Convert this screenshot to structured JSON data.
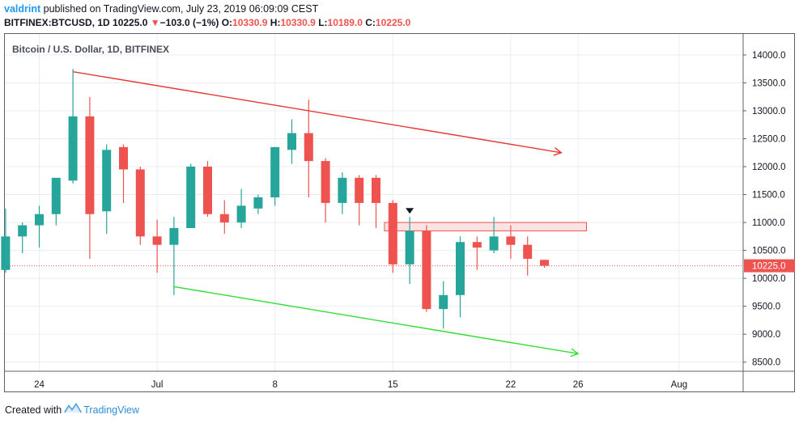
{
  "header": {
    "author": "valdrint",
    "published_text": " published on TradingView.com, July 23, 2019 06:09:09 CEST",
    "symbol": "BITFINEX:BTCUSD, 1D",
    "last": "10225.0",
    "change_arrow": "▼",
    "change": "−103.0 (−1%)",
    "o_label": "O:",
    "o": "10330.9",
    "h_label": "H:",
    "h": "10330.9",
    "l_label": "L:",
    "l": "10189.0",
    "c_label": "C:",
    "c": "10225.0"
  },
  "chart_title": "Bitcoin / U.S. Dollar, 1D, BITFINEX",
  "footer": {
    "created_with": "Created with",
    "brand": "TradingView"
  },
  "colors": {
    "up": "#26a69a",
    "down": "#ef5350",
    "grid": "#e9edf2",
    "resistance_line": "#e53935",
    "support_line": "#33dd33",
    "zone_fill": "#fbe3e3",
    "zone_stroke": "#ef5350",
    "price_line": "#ef5350"
  },
  "chart_data": {
    "type": "candlestick",
    "title": "Bitcoin / U.S. Dollar, 1D, BITFINEX",
    "ylim": [
      8300,
      14300
    ],
    "y_ticks": [
      14000,
      13500,
      13000,
      12500,
      12000,
      11500,
      11000,
      10500,
      10000,
      9500,
      9000,
      8500
    ],
    "x_ticks": [
      "24",
      "Jul",
      "8",
      "15",
      "22",
      "26",
      "Aug"
    ],
    "x_tick_days": [
      0,
      7,
      14,
      21,
      28,
      32,
      38
    ],
    "last_price": 10225.0,
    "candles": [
      {
        "day": -2,
        "o": 10150,
        "h": 11250,
        "l": 10100,
        "c": 10750
      },
      {
        "day": -1,
        "o": 10750,
        "h": 11000,
        "l": 10450,
        "c": 10950
      },
      {
        "day": 0,
        "o": 10950,
        "h": 11300,
        "l": 10550,
        "c": 11150
      },
      {
        "day": 1,
        "o": 11150,
        "h": 11800,
        "l": 10950,
        "c": 11800
      },
      {
        "day": 2,
        "o": 11750,
        "h": 13750,
        "l": 11700,
        "c": 12900
      },
      {
        "day": 3,
        "o": 12900,
        "h": 13250,
        "l": 10350,
        "c": 11150
      },
      {
        "day": 4,
        "o": 11200,
        "h": 12400,
        "l": 10800,
        "c": 12300
      },
      {
        "day": 5,
        "o": 12350,
        "h": 12400,
        "l": 11350,
        "c": 11950
      },
      {
        "day": 6,
        "o": 11950,
        "h": 12000,
        "l": 10600,
        "c": 10750
      },
      {
        "day": 7,
        "o": 10750,
        "h": 11050,
        "l": 10100,
        "c": 10600
      },
      {
        "day": 8,
        "o": 10600,
        "h": 11100,
        "l": 9700,
        "c": 10900
      },
      {
        "day": 9,
        "o": 10900,
        "h": 12050,
        "l": 10900,
        "c": 12000
      },
      {
        "day": 10,
        "o": 12000,
        "h": 12100,
        "l": 11100,
        "c": 11150
      },
      {
        "day": 11,
        "o": 11150,
        "h": 11400,
        "l": 10800,
        "c": 11000
      },
      {
        "day": 12,
        "o": 11000,
        "h": 11600,
        "l": 10900,
        "c": 11300
      },
      {
        "day": 13,
        "o": 11250,
        "h": 11500,
        "l": 11150,
        "c": 11450
      },
      {
        "day": 14,
        "o": 11450,
        "h": 12350,
        "l": 11300,
        "c": 12350
      },
      {
        "day": 15,
        "o": 12300,
        "h": 12850,
        "l": 12050,
        "c": 12600
      },
      {
        "day": 16,
        "o": 12600,
        "h": 13200,
        "l": 11450,
        "c": 12100
      },
      {
        "day": 17,
        "o": 12100,
        "h": 12150,
        "l": 11000,
        "c": 11350
      },
      {
        "day": 18,
        "o": 11350,
        "h": 11900,
        "l": 11150,
        "c": 11800
      },
      {
        "day": 19,
        "o": 11800,
        "h": 11850,
        "l": 10950,
        "c": 11350
      },
      {
        "day": 20,
        "o": 11800,
        "h": 11850,
        "l": 10900,
        "c": 11350
      },
      {
        "day": 21,
        "o": 11350,
        "h": 11400,
        "l": 10100,
        "c": 10250
      },
      {
        "day": 22,
        "o": 10250,
        "h": 11100,
        "l": 9900,
        "c": 10850
      },
      {
        "day": 23,
        "o": 10850,
        "h": 10950,
        "l": 9400,
        "c": 9450
      },
      {
        "day": 24,
        "o": 9450,
        "h": 9950,
        "l": 9100,
        "c": 9700
      },
      {
        "day": 25,
        "o": 9700,
        "h": 10750,
        "l": 9300,
        "c": 10650
      },
      {
        "day": 26,
        "o": 10650,
        "h": 10750,
        "l": 10150,
        "c": 10550
      },
      {
        "day": 27,
        "o": 10500,
        "h": 11100,
        "l": 10450,
        "c": 10750
      },
      {
        "day": 28,
        "o": 10750,
        "h": 10950,
        "l": 10350,
        "c": 10600
      },
      {
        "day": 29,
        "o": 10600,
        "h": 10750,
        "l": 10050,
        "c": 10350
      },
      {
        "day": 30,
        "o": 10330.9,
        "h": 10330.9,
        "l": 10189,
        "c": 10225
      }
    ],
    "drawings": {
      "resistance_line": {
        "from": {
          "day": 2,
          "price": 13700
        },
        "to": {
          "day": 31,
          "price": 12250
        }
      },
      "support_line": {
        "from": {
          "day": 8,
          "price": 9850
        },
        "to": {
          "day": 32,
          "price": 8650
        }
      },
      "resistance_zone": {
        "from_day": 20.5,
        "to_day": 32.5,
        "low": 10850,
        "high": 11000
      },
      "marker": {
        "day": 22,
        "price": 11200
      }
    }
  }
}
